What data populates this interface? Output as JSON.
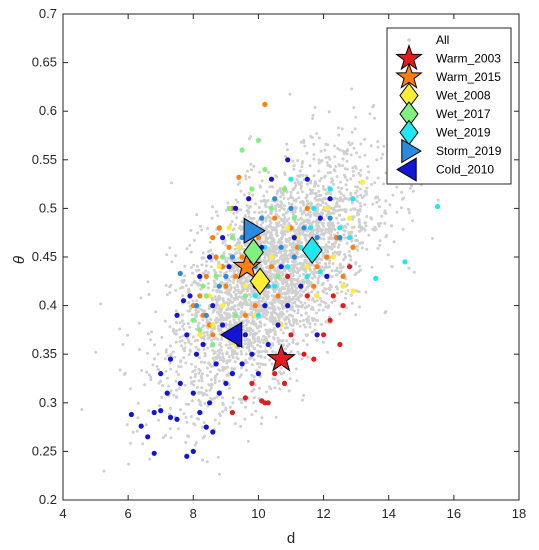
{
  "chart_data": {
    "type": "scatter",
    "title": "",
    "xlabel": "d",
    "ylabel": "θ",
    "xlim": [
      4,
      18
    ],
    "ylim": [
      0.2,
      0.7
    ],
    "xticks": [
      "4",
      "6",
      "8",
      "10",
      "12",
      "14",
      "16",
      "18"
    ],
    "yticks": [
      "0.2",
      "0.25",
      "0.3",
      "0.35",
      "0.4",
      "0.45",
      "0.5",
      "0.55",
      "0.6",
      "0.65",
      "0.7"
    ],
    "grid": false,
    "legend_position": "top-right",
    "background_cloud": {
      "name": "All",
      "color": "#d0d0d0",
      "center": [
        10.4,
        0.43
      ],
      "note_points_approx": 6000
    },
    "series": [
      {
        "name": "All",
        "color": "#d0d0d0",
        "marker": "dot",
        "points": []
      },
      {
        "name": "Warm_2003",
        "color": "#e41a1c",
        "marker": "star",
        "mean": [
          10.7,
          0.345
        ],
        "points": [
          [
            9.2,
            0.29
          ],
          [
            9.6,
            0.305
          ],
          [
            10.1,
            0.302
          ],
          [
            10.3,
            0.3
          ],
          [
            10.2,
            0.3
          ],
          [
            10.5,
            0.33
          ],
          [
            10.8,
            0.32
          ],
          [
            11.0,
            0.37
          ],
          [
            11.4,
            0.35
          ],
          [
            11.7,
            0.345
          ],
          [
            12.0,
            0.37
          ],
          [
            12.2,
            0.385
          ],
          [
            12.3,
            0.41
          ],
          [
            12.5,
            0.36
          ],
          [
            10.9,
            0.43
          ],
          [
            11.5,
            0.41
          ],
          [
            12.6,
            0.4
          ],
          [
            9.8,
            0.32
          ],
          [
            11.3,
            0.42
          ],
          [
            12.8,
            0.44
          ]
        ]
      },
      {
        "name": "Warm_2015",
        "color": "#ff7f0e",
        "marker": "star",
        "mean": [
          9.65,
          0.44
        ],
        "points": [
          [
            10.2,
            0.607
          ],
          [
            9.4,
            0.532
          ],
          [
            9.7,
            0.51
          ],
          [
            8.6,
            0.47
          ],
          [
            8.4,
            0.43
          ],
          [
            8.7,
            0.45
          ],
          [
            8.9,
            0.44
          ],
          [
            9.1,
            0.46
          ],
          [
            9.3,
            0.43
          ],
          [
            8.2,
            0.41
          ],
          [
            8.0,
            0.4
          ],
          [
            8.5,
            0.38
          ],
          [
            8.3,
            0.39
          ],
          [
            9.0,
            0.42
          ],
          [
            9.5,
            0.45
          ],
          [
            10.5,
            0.49
          ],
          [
            11.0,
            0.48
          ],
          [
            11.2,
            0.46
          ],
          [
            11.8,
            0.44
          ],
          [
            12.1,
            0.45
          ],
          [
            12.4,
            0.47
          ],
          [
            12.6,
            0.43
          ],
          [
            11.5,
            0.5
          ],
          [
            10.8,
            0.52
          ],
          [
            10.0,
            0.47
          ],
          [
            9.9,
            0.4
          ],
          [
            8.8,
            0.48
          ],
          [
            9.2,
            0.5
          ],
          [
            10.4,
            0.44
          ],
          [
            11.7,
            0.42
          ],
          [
            8.6,
            0.37
          ],
          [
            9.6,
            0.39
          ],
          [
            12.9,
            0.46
          ],
          [
            10.6,
            0.41
          ]
        ]
      },
      {
        "name": "Wet_2008",
        "color": "#ffee33",
        "marker": "diamond",
        "mean": [
          10.05,
          0.425
        ],
        "points": [
          [
            9.1,
            0.48
          ],
          [
            8.8,
            0.44
          ],
          [
            8.5,
            0.41
          ],
          [
            8.2,
            0.37
          ],
          [
            9.6,
            0.42
          ],
          [
            10.4,
            0.45
          ],
          [
            11.2,
            0.47
          ],
          [
            12.1,
            0.5
          ],
          [
            12.8,
            0.49
          ],
          [
            13.2,
            0.527
          ],
          [
            12.6,
            0.42
          ],
          [
            11.8,
            0.41
          ],
          [
            10.7,
            0.38
          ],
          [
            9.9,
            0.39
          ],
          [
            9.3,
            0.36
          ],
          [
            8.9,
            0.4
          ],
          [
            11.5,
            0.44
          ],
          [
            12.3,
            0.45
          ],
          [
            10.9,
            0.48
          ],
          [
            9.4,
            0.46
          ],
          [
            8.6,
            0.38
          ],
          [
            12.9,
            0.415
          ]
        ]
      },
      {
        "name": "Wet_2017",
        "color": "#80f080",
        "marker": "diamond",
        "mean": [
          9.85,
          0.455
        ],
        "points": [
          [
            9.5,
            0.56
          ],
          [
            10.0,
            0.57
          ],
          [
            10.2,
            0.54
          ],
          [
            9.8,
            0.52
          ],
          [
            9.2,
            0.47
          ],
          [
            8.7,
            0.43
          ],
          [
            8.4,
            0.41
          ],
          [
            8.1,
            0.4
          ],
          [
            8.0,
            0.385
          ],
          [
            8.2,
            0.375
          ],
          [
            8.6,
            0.36
          ],
          [
            9.0,
            0.37
          ],
          [
            9.3,
            0.39
          ],
          [
            9.6,
            0.41
          ],
          [
            10.4,
            0.5
          ],
          [
            10.8,
            0.52
          ],
          [
            11.1,
            0.49
          ],
          [
            8.9,
            0.45
          ],
          [
            9.1,
            0.5
          ],
          [
            8.3,
            0.42
          ],
          [
            10.6,
            0.43
          ],
          [
            9.7,
            0.48
          ]
        ]
      },
      {
        "name": "Wet_2019",
        "color": "#1fe8f0",
        "marker": "diamond",
        "mean": [
          11.65,
          0.457
        ],
        "points": [
          [
            15.5,
            0.502
          ],
          [
            14.5,
            0.445
          ],
          [
            13.6,
            0.428
          ],
          [
            12.8,
            0.47
          ],
          [
            12.2,
            0.52
          ],
          [
            11.7,
            0.5
          ],
          [
            11.3,
            0.46
          ],
          [
            10.9,
            0.44
          ],
          [
            10.5,
            0.42
          ],
          [
            10.0,
            0.39
          ],
          [
            12.5,
            0.48
          ],
          [
            11.9,
            0.435
          ],
          [
            11.0,
            0.53
          ],
          [
            10.2,
            0.46
          ],
          [
            12.9,
            0.51
          ],
          [
            11.5,
            0.43
          ],
          [
            9.9,
            0.41
          ],
          [
            11.6,
            0.48
          ]
        ]
      },
      {
        "name": "Storm_2019",
        "color": "#2a8ae0",
        "marker": "triangle-right",
        "mean": [
          9.8,
          0.477
        ],
        "points": [
          [
            7.6,
            0.433
          ],
          [
            8.1,
            0.4
          ],
          [
            8.4,
            0.39
          ],
          [
            8.8,
            0.42
          ],
          [
            9.2,
            0.45
          ],
          [
            9.5,
            0.47
          ],
          [
            10.1,
            0.49
          ],
          [
            10.5,
            0.51
          ],
          [
            11.0,
            0.5
          ],
          [
            11.4,
            0.48
          ],
          [
            11.8,
            0.47
          ],
          [
            12.2,
            0.49
          ],
          [
            10.7,
            0.46
          ],
          [
            9.9,
            0.44
          ],
          [
            9.0,
            0.43
          ],
          [
            10.3,
            0.42
          ],
          [
            11.1,
            0.45
          ],
          [
            12.5,
            0.47
          ]
        ]
      },
      {
        "name": "Cold_2010",
        "color": "#1414d4",
        "marker": "triangle-left",
        "mean": [
          9.25,
          0.37
        ],
        "points": [
          [
            6.1,
            0.288
          ],
          [
            6.4,
            0.276
          ],
          [
            6.8,
            0.29
          ],
          [
            7.0,
            0.292
          ],
          [
            7.3,
            0.285
          ],
          [
            7.5,
            0.283
          ],
          [
            6.8,
            0.248
          ],
          [
            7.8,
            0.245
          ],
          [
            8.0,
            0.25
          ],
          [
            8.2,
            0.29
          ],
          [
            8.4,
            0.275
          ],
          [
            8.6,
            0.27
          ],
          [
            8.5,
            0.3
          ],
          [
            8.8,
            0.31
          ],
          [
            9.0,
            0.32
          ],
          [
            9.2,
            0.33
          ],
          [
            9.5,
            0.34
          ],
          [
            9.8,
            0.35
          ],
          [
            10.0,
            0.33
          ],
          [
            10.3,
            0.36
          ],
          [
            10.6,
            0.38
          ],
          [
            10.9,
            0.4
          ],
          [
            11.3,
            0.42
          ],
          [
            11.6,
            0.46
          ],
          [
            11.9,
            0.49
          ],
          [
            12.2,
            0.51
          ],
          [
            11.5,
            0.53
          ],
          [
            10.9,
            0.55
          ],
          [
            10.4,
            0.53
          ],
          [
            9.7,
            0.51
          ],
          [
            9.3,
            0.5
          ],
          [
            8.9,
            0.47
          ],
          [
            8.5,
            0.45
          ],
          [
            8.2,
            0.43
          ],
          [
            7.9,
            0.41
          ],
          [
            7.7,
            0.405
          ],
          [
            7.5,
            0.39
          ],
          [
            7.8,
            0.37
          ],
          [
            8.1,
            0.35
          ],
          [
            7.3,
            0.345
          ],
          [
            7.0,
            0.33
          ],
          [
            7.6,
            0.32
          ],
          [
            8.0,
            0.31
          ],
          [
            8.7,
            0.34
          ],
          [
            9.6,
            0.37
          ],
          [
            10.2,
            0.4
          ],
          [
            10.7,
            0.44
          ],
          [
            11.1,
            0.47
          ],
          [
            9.1,
            0.44
          ],
          [
            8.6,
            0.4
          ],
          [
            8.3,
            0.36
          ],
          [
            9.4,
            0.36
          ],
          [
            10.8,
            0.35
          ],
          [
            11.8,
            0.37
          ],
          [
            12.1,
            0.43
          ],
          [
            10.1,
            0.46
          ],
          [
            9.9,
            0.42
          ],
          [
            7.2,
            0.31
          ],
          [
            6.6,
            0.265
          ],
          [
            8.9,
            0.38
          ]
        ]
      }
    ]
  }
}
